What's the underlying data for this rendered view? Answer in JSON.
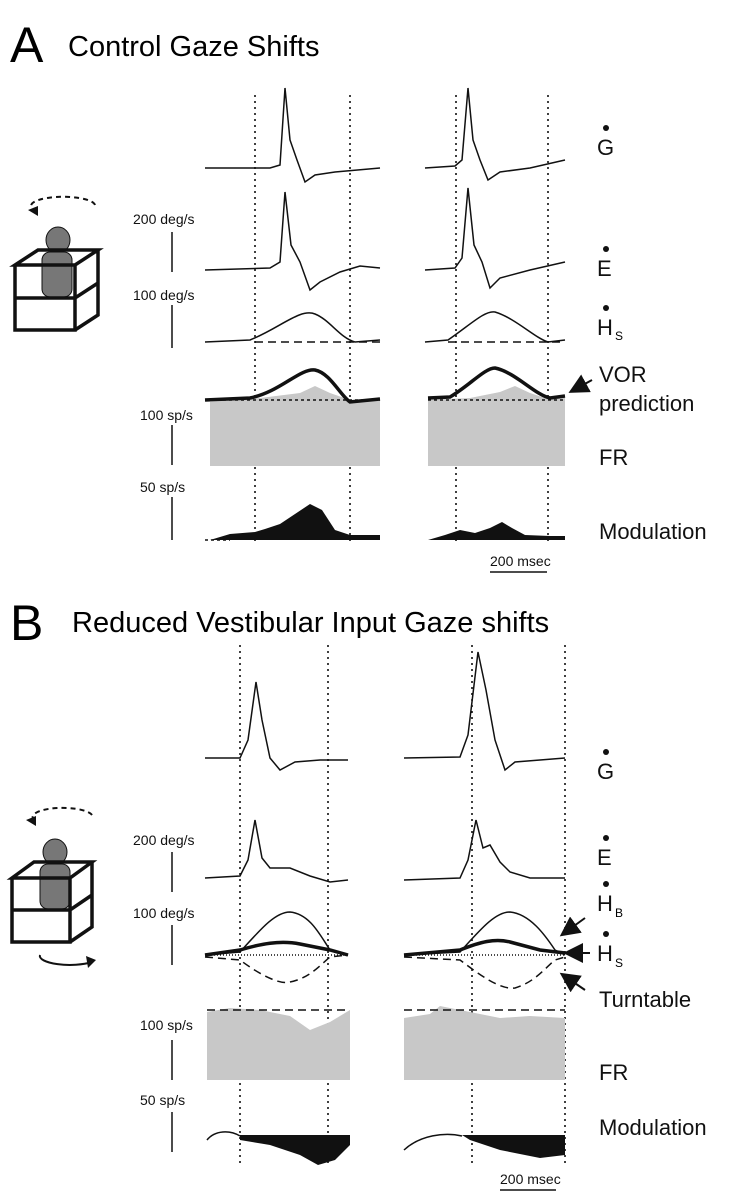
{
  "panels": [
    {
      "letter": "A",
      "title": "Control Gaze Shifts",
      "scale_labels": [
        "200 deg/s",
        "100 deg/s",
        "100 sp/s",
        "50 sp/s"
      ],
      "trace_labels": [
        {
          "main": "G"
        },
        {
          "main": "E"
        },
        {
          "main": "H",
          "sub": "S"
        },
        {
          "main": "VOR"
        },
        {
          "main": "prediction"
        },
        {
          "main": "FR"
        },
        {
          "main": "Modulation"
        }
      ],
      "time_scale": "200 msec"
    },
    {
      "letter": "B",
      "title": "Reduced Vestibular Input Gaze shifts",
      "scale_labels": [
        "200 deg/s",
        "100 deg/s",
        "100 sp/s",
        "50 sp/s"
      ],
      "trace_labels": [
        {
          "main": "G"
        },
        {
          "main": "E"
        },
        {
          "main": "H",
          "sub": "B"
        },
        {
          "main": "H",
          "sub": "S"
        },
        {
          "main": "Turntable"
        },
        {
          "main": "FR"
        },
        {
          "main": "Modulation"
        }
      ],
      "time_scale": "200 msec"
    }
  ]
}
